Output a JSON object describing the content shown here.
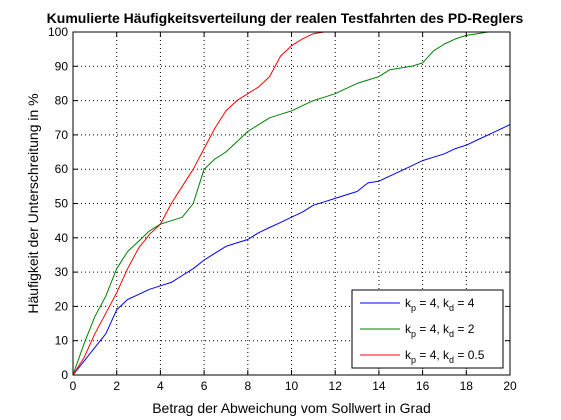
{
  "chart_data": {
    "type": "line",
    "title": "Kumulierte Häufigkeitsverteilung der realen Testfahrten des PD-Reglers",
    "xlabel": "Betrag der Abweichung vom Sollwert in Grad",
    "ylabel": "Häufigkeit der Unterschreitung in %",
    "xlim": [
      0,
      20
    ],
    "ylim": [
      0,
      100
    ],
    "xticks": [
      0,
      2,
      4,
      6,
      8,
      10,
      12,
      14,
      16,
      18,
      20
    ],
    "yticks": [
      0,
      10,
      20,
      30,
      40,
      50,
      60,
      70,
      80,
      90,
      100
    ],
    "grid": true,
    "legend_position": "bottom-right",
    "series": [
      {
        "name": "k_p = 4, k_d = 4",
        "legend": {
          "k1": "k",
          "s1": "p",
          "m1": " = 4, ",
          "k2": "k",
          "s2": "d",
          "m2": " = 4"
        },
        "color": "#0000ff",
        "x": [
          0,
          0.5,
          1,
          1.5,
          2,
          2.5,
          3,
          3.5,
          4,
          4.5,
          5,
          5.5,
          6,
          6.5,
          7,
          7.5,
          8,
          8.5,
          9,
          9.5,
          10,
          10.5,
          11,
          11.5,
          12,
          12.5,
          13,
          13.5,
          14,
          14.5,
          15,
          15.5,
          16,
          16.5,
          17,
          17.5,
          18,
          18.5,
          19,
          19.5,
          20
        ],
        "y": [
          0,
          4,
          8,
          12,
          19,
          22,
          23.5,
          25,
          26,
          27,
          29,
          31,
          33.5,
          35.5,
          37.5,
          38.5,
          39.5,
          41.5,
          43,
          44.5,
          46,
          47.5,
          49.5,
          50.5,
          51.5,
          52.5,
          53.5,
          56,
          56.5,
          58,
          59.5,
          61,
          62.5,
          63.5,
          64.5,
          66,
          67,
          68.5,
          70,
          71.5,
          73
        ]
      },
      {
        "name": "k_p = 4, k_d = 2",
        "legend": {
          "k1": "k",
          "s1": "p",
          "m1": " = 4, ",
          "k2": "k",
          "s2": "d",
          "m2": " = 2"
        },
        "color": "#008000",
        "x": [
          0,
          0.5,
          1,
          1.5,
          2,
          2.5,
          3,
          3.5,
          4,
          4.5,
          5,
          5.5,
          6,
          6.5,
          7,
          7.5,
          8,
          8.5,
          9,
          9.5,
          10,
          10.5,
          11,
          11.5,
          12,
          12.5,
          13,
          13.5,
          14,
          14.5,
          15,
          15.5,
          16,
          16.5,
          17,
          17.5,
          18,
          18.5,
          19
        ],
        "y": [
          0,
          9,
          17,
          23,
          31,
          36,
          39,
          42,
          44,
          45,
          46,
          50,
          60,
          63,
          65,
          68,
          71,
          73,
          75,
          76,
          77,
          78.5,
          80,
          81,
          82,
          83.5,
          85,
          86,
          87,
          89,
          89.5,
          90,
          91,
          94.5,
          96.5,
          98,
          99,
          99.5,
          100
        ]
      },
      {
        "name": "k_p = 4, k_d = 0.5",
        "legend": {
          "k1": "k",
          "s1": "p",
          "m1": " = 4, ",
          "k2": "k",
          "s2": "d",
          "m2": " = 0.5"
        },
        "color": "#ff0000",
        "x": [
          0,
          0.5,
          1,
          1.5,
          2,
          2.5,
          3,
          3.5,
          4,
          4.5,
          5,
          5.5,
          6,
          6.5,
          7,
          7.5,
          8,
          8.5,
          9,
          9.5,
          10,
          10.5,
          11,
          11.5
        ],
        "y": [
          0,
          5,
          12,
          18,
          24,
          31,
          37,
          41,
          44,
          50,
          55,
          60,
          66,
          72,
          77,
          80,
          82,
          84,
          87,
          93,
          96,
          98,
          99.5,
          100
        ]
      }
    ]
  }
}
